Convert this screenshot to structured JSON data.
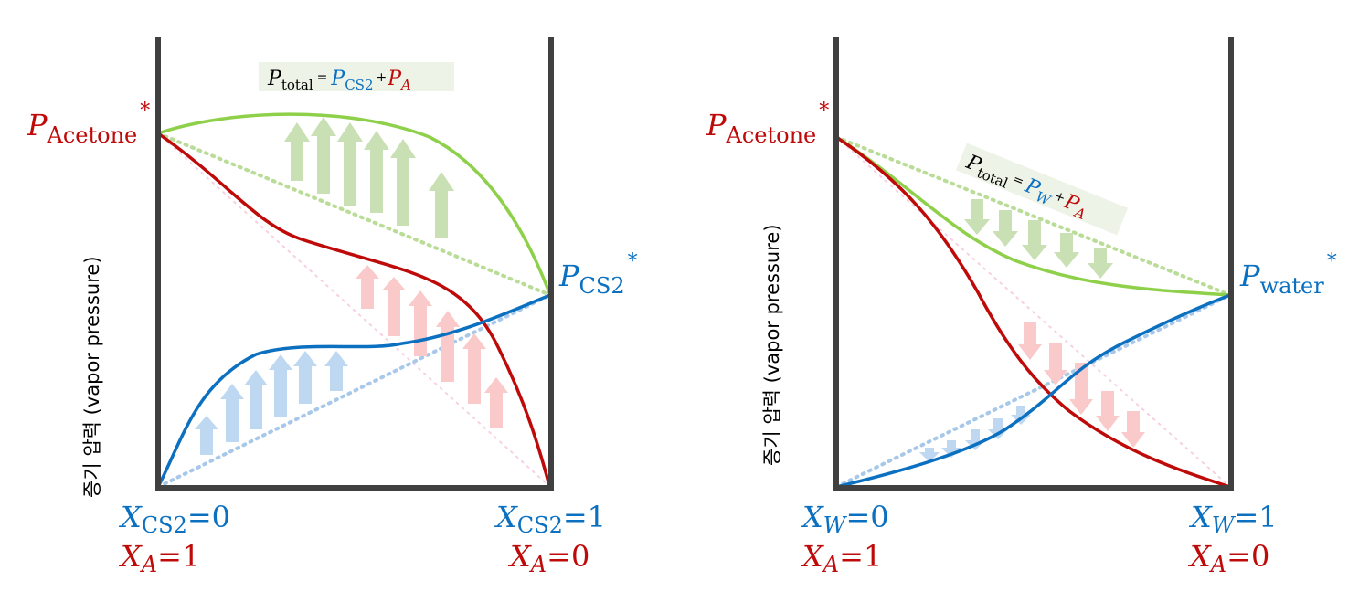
{
  "colors": {
    "total": "#8ed04a",
    "acetone": "#bf0a0a",
    "other": "#0b70c0",
    "frame": "#404040",
    "arrow_green": "#c9e0b4",
    "arrow_red": "#fac9c9",
    "arrow_blue": "#bdd8f0",
    "eq_box": "#eef3e8"
  },
  "left": {
    "ylabel": "증기 압력 (vapor pressure)",
    "p_acetone": {
      "base": "P",
      "sub": "Acetone",
      "star": "*"
    },
    "p_other": {
      "base": "P",
      "sub": "CS2",
      "star": "*"
    },
    "equation": {
      "lhs": "P",
      "lhs_sub": "total",
      "eq": "=",
      "term1": "P",
      "term1_sub": "CS2",
      "plus": "+",
      "term2": "P",
      "term2_sub": "A"
    },
    "x_left": {
      "top_var": "X",
      "top_sub": "CS2",
      "top_val": "=0",
      "bottom_var": "X",
      "bottom_sub": "A",
      "bottom_val": "=1"
    },
    "x_right": {
      "top_var": "X",
      "top_sub": "CS2",
      "top_val": "=1",
      "bottom_var": "X",
      "bottom_sub": "A",
      "bottom_val": "=0"
    }
  },
  "right": {
    "ylabel": "증기 압력 (vapor pressure)",
    "p_acetone": {
      "base": "P",
      "sub": "Acetone",
      "star": "*"
    },
    "p_other": {
      "base": "P",
      "sub": "water",
      "star": "*"
    },
    "equation": {
      "lhs": "P",
      "lhs_sub": "total",
      "eq": "=",
      "term1": "P",
      "term1_sub": "W",
      "plus": "+",
      "term2": "P",
      "term2_sub": "A"
    },
    "x_left": {
      "top_var": "X",
      "top_sub": "W",
      "top_val": "=0",
      "bottom_var": "X",
      "bottom_sub": "A",
      "bottom_val": "=1"
    },
    "x_right": {
      "top_var": "X",
      "top_sub": "W",
      "top_val": "=1",
      "bottom_var": "X",
      "bottom_sub": "A",
      "bottom_val": "=0"
    }
  }
}
